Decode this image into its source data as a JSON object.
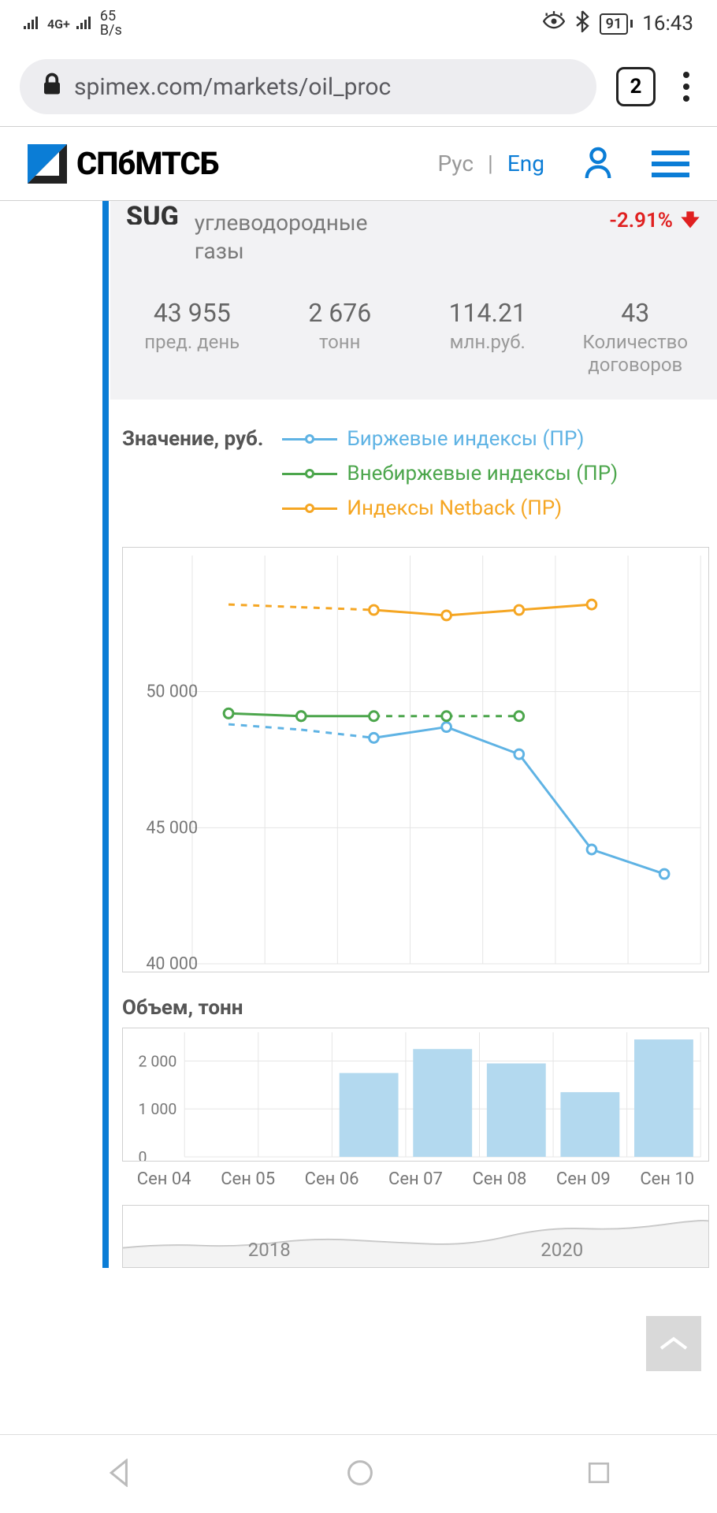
{
  "status": {
    "net_label": "4G+",
    "speed_val": "65",
    "speed_unit": "B/s",
    "battery": "91",
    "time": "16:43"
  },
  "browser": {
    "url": "spimex.com/markets/oil_proc",
    "tab_count": "2"
  },
  "header": {
    "brand": "СПбМТСБ",
    "lang_ru": "Рус",
    "lang_en": "Eng"
  },
  "ticker": {
    "code": "SUG",
    "name_line1": "углеводородные",
    "name_line2": "газы",
    "change": "-2.91%"
  },
  "stats": [
    {
      "value": "43 955",
      "label": "пред. день"
    },
    {
      "value": "2 676",
      "label": "тонн"
    },
    {
      "value": "114.21",
      "label": "млн.руб."
    },
    {
      "value": "43",
      "label": "Количество договоров"
    }
  ],
  "main_chart": {
    "y_title": "Значение, руб.",
    "type": "line",
    "ylim": [
      40000,
      55000
    ],
    "yticks": [
      40000,
      45000,
      50000
    ],
    "ytick_labels": [
      "40 000",
      "45 000",
      "50 000"
    ],
    "x_categories": [
      "Сен 04",
      "Сен 05",
      "Сен 06",
      "Сен 07",
      "Сен 08",
      "Сен 09",
      "Сен 10"
    ],
    "grid_color": "#e5e5e5",
    "background_color": "#ffffff",
    "label_fontsize": 22,
    "series": [
      {
        "name": "Биржевые индексы (ПР)",
        "color": "#5fb3e4",
        "dashed_until_index": 2,
        "values": [
          48800,
          48600,
          48300,
          48700,
          47700,
          44200,
          43300
        ]
      },
      {
        "name": "Внебиржевые индексы (ПР)",
        "color": "#4ca64c",
        "dashed_from_index": 2,
        "values": [
          49200,
          49100,
          49100,
          49100,
          49100,
          null,
          null
        ]
      },
      {
        "name": "Индексы Netback (ПР)",
        "color": "#f5a623",
        "dashed_until_index": 2,
        "values": [
          53200,
          53100,
          53000,
          52800,
          53000,
          53200,
          null
        ]
      }
    ]
  },
  "volume_chart": {
    "title": "Объем, тонн",
    "type": "bar",
    "ylim": [
      0,
      2600
    ],
    "yticks": [
      0,
      1000,
      2000
    ],
    "ytick_labels": [
      "0",
      "1 000",
      "2 000"
    ],
    "bar_color": "#b3d9ef",
    "grid_color": "#e5e5e5",
    "values": [
      null,
      null,
      1750,
      2250,
      1950,
      1350,
      2450
    ]
  },
  "range_chart": {
    "years": [
      "2018",
      "2020"
    ],
    "line_color": "#c0c0c0"
  },
  "colors": {
    "accent": "#0b7dd6",
    "negative": "#e02020",
    "rail": "#0b7dd6"
  }
}
